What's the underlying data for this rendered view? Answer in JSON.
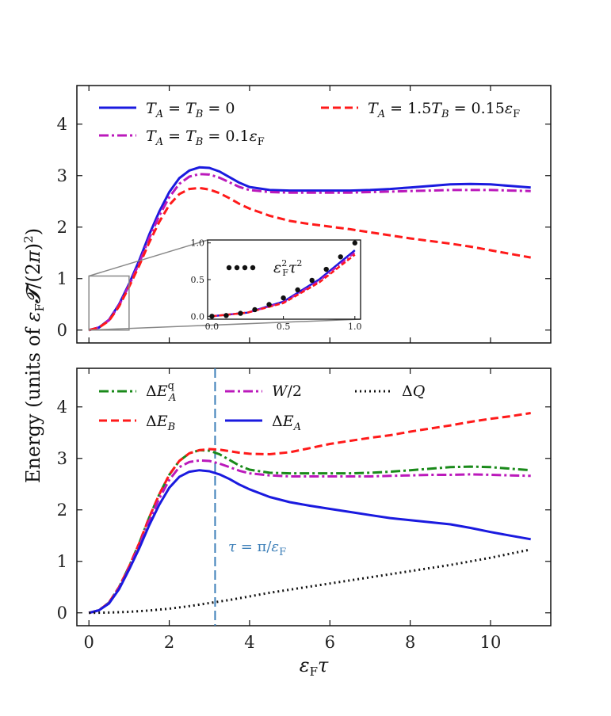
{
  "chart_data": [
    {
      "type": "line",
      "panel": "top",
      "xlim": [
        -0.3,
        11.5
      ],
      "ylim": [
        -0.25,
        4.75
      ],
      "xticks": [
        0,
        2,
        4,
        6,
        8,
        10
      ],
      "yticks": [
        0,
        1,
        2,
        3,
        4
      ],
      "ytick_labels": [
        "0",
        "1",
        "2",
        "3",
        "4"
      ],
      "legend": "top, two columns",
      "series": [
        {
          "name": "T_A = T_B = 0",
          "color": "#1a1adf",
          "style": "solid",
          "x": [
            0,
            0.25,
            0.5,
            0.75,
            1.0,
            1.25,
            1.5,
            1.75,
            2.0,
            2.25,
            2.5,
            2.75,
            3.0,
            3.25,
            3.5,
            3.75,
            4.0,
            4.5,
            5.0,
            5.5,
            6.0,
            6.5,
            7.0,
            7.5,
            8.0,
            8.5,
            9.0,
            9.5,
            10.0,
            10.5,
            11.0
          ],
          "y": [
            0,
            0.05,
            0.2,
            0.5,
            0.9,
            1.35,
            1.85,
            2.3,
            2.68,
            2.95,
            3.1,
            3.16,
            3.15,
            3.08,
            2.97,
            2.86,
            2.78,
            2.72,
            2.71,
            2.71,
            2.71,
            2.71,
            2.72,
            2.74,
            2.77,
            2.8,
            2.83,
            2.84,
            2.83,
            2.8,
            2.77
          ]
        },
        {
          "name": "T_A = T_B = 0.1 ε_F",
          "color": "#bb19bb",
          "style": "dashdot",
          "x": [
            0,
            0.25,
            0.5,
            0.75,
            1.0,
            1.25,
            1.5,
            1.75,
            2.0,
            2.25,
            2.5,
            2.75,
            3.0,
            3.25,
            3.5,
            3.75,
            4.0,
            4.5,
            5.0,
            5.5,
            6.0,
            6.5,
            7.0,
            7.5,
            8.0,
            8.5,
            9.0,
            9.5,
            10.0,
            10.5,
            11.0
          ],
          "y": [
            0,
            0.05,
            0.19,
            0.48,
            0.87,
            1.3,
            1.78,
            2.22,
            2.58,
            2.84,
            2.98,
            3.03,
            3.02,
            2.96,
            2.87,
            2.78,
            2.72,
            2.68,
            2.67,
            2.67,
            2.67,
            2.67,
            2.68,
            2.69,
            2.7,
            2.71,
            2.72,
            2.72,
            2.72,
            2.71,
            2.7
          ]
        },
        {
          "name": "T_A = 1.5 T_B = 0.15 ε_F",
          "color": "#ff1a1a",
          "style": "dashed",
          "x": [
            0,
            0.25,
            0.5,
            0.75,
            1.0,
            1.25,
            1.5,
            1.75,
            2.0,
            2.25,
            2.5,
            2.75,
            3.0,
            3.25,
            3.5,
            3.75,
            4.0,
            4.5,
            5.0,
            5.5,
            6.0,
            6.5,
            7.0,
            7.5,
            8.0,
            8.5,
            9.0,
            9.5,
            10.0,
            10.5,
            11.0
          ],
          "y": [
            0,
            0.05,
            0.18,
            0.46,
            0.84,
            1.25,
            1.7,
            2.1,
            2.43,
            2.64,
            2.74,
            2.76,
            2.73,
            2.66,
            2.56,
            2.45,
            2.36,
            2.22,
            2.12,
            2.06,
            2.01,
            1.96,
            1.9,
            1.84,
            1.78,
            1.73,
            1.68,
            1.62,
            1.55,
            1.48,
            1.41
          ]
        }
      ],
      "zoom_box": {
        "x": [
          0,
          1
        ],
        "y": [
          0,
          1.05
        ]
      },
      "inset": {
        "xlim": [
          -0.03,
          1.04
        ],
        "ylim": [
          -0.04,
          1.04
        ],
        "xticks": [
          0.0,
          0.5,
          1.0
        ],
        "yticks": [
          0.0,
          0.5,
          1.0
        ],
        "xtick_labels": [
          "0.0",
          "0.5",
          "1.0"
        ],
        "ytick_labels": [
          "0.0",
          "0.5",
          "1.0"
        ],
        "dotted_series": {
          "name": "ε_F² τ²",
          "x": [
            0.0,
            0.1,
            0.2,
            0.3,
            0.4,
            0.5,
            0.6,
            0.7,
            0.8,
            0.9,
            1.0
          ],
          "y": [
            0.0,
            0.01,
            0.04,
            0.09,
            0.16,
            0.25,
            0.36,
            0.49,
            0.64,
            0.81,
            1.0
          ]
        }
      }
    },
    {
      "type": "line",
      "panel": "bottom",
      "xlim": [
        -0.3,
        11.5
      ],
      "ylim": [
        -0.25,
        4.75
      ],
      "xticks": [
        0,
        2,
        4,
        6,
        8,
        10
      ],
      "yticks": [
        0,
        1,
        2,
        3,
        4
      ],
      "xtick_labels": [
        "0",
        "2",
        "4",
        "6",
        "8",
        "10"
      ],
      "ytick_labels": [
        "0",
        "1",
        "2",
        "3",
        "4"
      ],
      "legend": "top, three columns",
      "vline": {
        "x": 3.14159,
        "label": "τ = π/ε_F",
        "color": "#3d7fb8"
      },
      "series": [
        {
          "name": "ΔE_A^q",
          "color": "#1a8a1a",
          "style": "dashdot",
          "x": [
            0,
            0.25,
            0.5,
            0.75,
            1.0,
            1.25,
            1.5,
            1.75,
            2.0,
            2.25,
            2.5,
            2.75,
            3.0,
            3.25,
            3.5,
            3.75,
            4.0,
            4.5,
            5.0,
            5.5,
            6.0,
            6.5,
            7.0,
            7.5,
            8.0,
            8.5,
            9.0,
            9.5,
            10.0,
            10.5,
            11.0
          ],
          "y": [
            0,
            0.05,
            0.2,
            0.5,
            0.9,
            1.35,
            1.85,
            2.3,
            2.68,
            2.95,
            3.1,
            3.16,
            3.15,
            3.08,
            2.97,
            2.86,
            2.78,
            2.72,
            2.71,
            2.71,
            2.71,
            2.71,
            2.72,
            2.74,
            2.77,
            2.8,
            2.83,
            2.84,
            2.83,
            2.8,
            2.77
          ]
        },
        {
          "name": "ΔE_B",
          "color": "#ff1a1a",
          "style": "dashed",
          "x": [
            0,
            0.25,
            0.5,
            0.75,
            1.0,
            1.25,
            1.5,
            1.75,
            2.0,
            2.25,
            2.5,
            2.75,
            3.0,
            3.25,
            3.5,
            3.75,
            4.0,
            4.5,
            5.0,
            5.5,
            6.0,
            6.5,
            7.0,
            7.5,
            8.0,
            8.5,
            9.0,
            9.5,
            10.0,
            10.5,
            11.0
          ],
          "y": [
            0,
            0.05,
            0.2,
            0.5,
            0.9,
            1.35,
            1.85,
            2.3,
            2.68,
            2.95,
            3.1,
            3.16,
            3.18,
            3.17,
            3.14,
            3.11,
            3.09,
            3.08,
            3.12,
            3.2,
            3.28,
            3.34,
            3.4,
            3.45,
            3.52,
            3.58,
            3.64,
            3.71,
            3.77,
            3.82,
            3.88
          ]
        },
        {
          "name": "W/2",
          "color": "#bb19bb",
          "style": "dashdot",
          "x": [
            0,
            0.25,
            0.5,
            0.75,
            1.0,
            1.25,
            1.5,
            1.75,
            2.0,
            2.25,
            2.5,
            2.75,
            3.0,
            3.25,
            3.5,
            3.75,
            4.0,
            4.5,
            5.0,
            5.5,
            6.0,
            6.5,
            7.0,
            7.5,
            8.0,
            8.5,
            9.0,
            9.5,
            10.0,
            10.5,
            11.0
          ],
          "y": [
            0,
            0.05,
            0.19,
            0.48,
            0.87,
            1.3,
            1.78,
            2.22,
            2.58,
            2.83,
            2.93,
            2.96,
            2.95,
            2.9,
            2.83,
            2.76,
            2.71,
            2.67,
            2.65,
            2.65,
            2.65,
            2.65,
            2.65,
            2.66,
            2.67,
            2.68,
            2.68,
            2.69,
            2.68,
            2.67,
            2.66
          ]
        },
        {
          "name": "ΔE_A",
          "color": "#1a1adf",
          "style": "solid",
          "x": [
            0,
            0.25,
            0.5,
            0.75,
            1.0,
            1.25,
            1.5,
            1.75,
            2.0,
            2.25,
            2.5,
            2.75,
            3.0,
            3.25,
            3.5,
            3.75,
            4.0,
            4.5,
            5.0,
            5.5,
            6.0,
            6.5,
            7.0,
            7.5,
            8.0,
            8.5,
            9.0,
            9.5,
            10.0,
            10.5,
            11.0
          ],
          "y": [
            0,
            0.05,
            0.18,
            0.46,
            0.84,
            1.25,
            1.7,
            2.1,
            2.43,
            2.64,
            2.74,
            2.77,
            2.75,
            2.69,
            2.6,
            2.49,
            2.4,
            2.25,
            2.15,
            2.08,
            2.02,
            1.96,
            1.9,
            1.84,
            1.8,
            1.76,
            1.72,
            1.65,
            1.57,
            1.5,
            1.43
          ]
        },
        {
          "name": "ΔQ",
          "color": "#111111",
          "style": "dotted",
          "x": [
            0,
            0.5,
            1.0,
            1.5,
            2.0,
            2.5,
            3.0,
            3.5,
            4.0,
            4.5,
            5.0,
            5.5,
            6.0,
            6.5,
            7.0,
            7.5,
            8.0,
            8.5,
            9.0,
            9.5,
            10.0,
            10.5,
            11.0
          ],
          "y": [
            0,
            0.005,
            0.02,
            0.045,
            0.08,
            0.13,
            0.19,
            0.25,
            0.32,
            0.39,
            0.45,
            0.51,
            0.57,
            0.63,
            0.69,
            0.75,
            0.81,
            0.87,
            0.93,
            1.0,
            1.07,
            1.15,
            1.23
          ]
        }
      ]
    }
  ]
}
